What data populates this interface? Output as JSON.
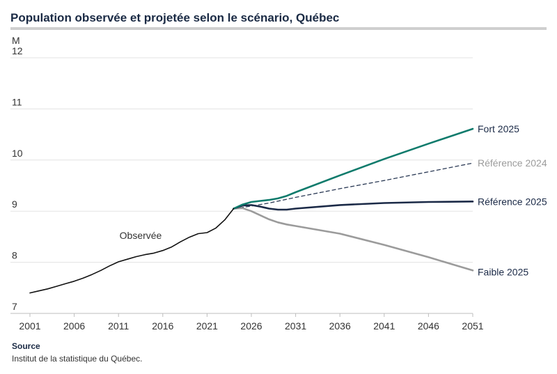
{
  "title": "Population observée et projetée selon le scénario, Québec",
  "source_label": "Source",
  "source_text": "Institut de la statistique du Québec.",
  "colors": {
    "observed": "#111111",
    "fort": "#0f7b6c",
    "ref2024": "#2b3a55",
    "ref2025": "#1b2a47",
    "faible": "#9b9b9b",
    "ref2024_label": "#9b9b9b",
    "grid": "#e3e3e3",
    "axis_text": "#333333"
  },
  "chart_data": {
    "type": "line",
    "title": "Population observée et projetée selon le scénario, Québec",
    "ylabel": "M",
    "xlim": [
      2001,
      2051
    ],
    "ylim": [
      7,
      12
    ],
    "xticks": [
      2001,
      2006,
      2011,
      2016,
      2021,
      2026,
      2031,
      2036,
      2041,
      2046,
      2051
    ],
    "yticks": [
      7,
      8,
      9,
      10,
      11,
      12
    ],
    "grid": true,
    "series": [
      {
        "name": "Observée",
        "key": "observed",
        "style": "solid",
        "x": [
          2001,
          2002,
          2003,
          2004,
          2005,
          2006,
          2007,
          2008,
          2009,
          2010,
          2011,
          2012,
          2013,
          2014,
          2015,
          2016,
          2017,
          2018,
          2019,
          2020,
          2021,
          2022,
          2023,
          2024
        ],
        "values": [
          7.4,
          7.44,
          7.48,
          7.53,
          7.58,
          7.63,
          7.69,
          7.76,
          7.84,
          7.93,
          8.01,
          8.06,
          8.11,
          8.15,
          8.18,
          8.23,
          8.3,
          8.4,
          8.49,
          8.56,
          8.58,
          8.67,
          8.83,
          9.05
        ]
      },
      {
        "name": "Fort 2025",
        "key": "fort",
        "style": "solid",
        "x": [
          2024,
          2025,
          2026,
          2027,
          2028,
          2029,
          2030,
          2031,
          2036,
          2041,
          2046,
          2051
        ],
        "values": [
          9.05,
          9.13,
          9.18,
          9.2,
          9.22,
          9.25,
          9.3,
          9.37,
          9.7,
          10.02,
          10.32,
          10.61
        ]
      },
      {
        "name": "Référence 2024",
        "key": "ref2024",
        "style": "dashed",
        "x": [
          2024,
          2026,
          2028,
          2031,
          2036,
          2041,
          2046,
          2051
        ],
        "values": [
          9.05,
          9.1,
          9.16,
          9.27,
          9.44,
          9.6,
          9.77,
          9.94
        ]
      },
      {
        "name": "Référence 2025",
        "key": "ref2025",
        "style": "solid",
        "x": [
          2024,
          2025,
          2026,
          2027,
          2028,
          2029,
          2030,
          2031,
          2036,
          2041,
          2046,
          2051
        ],
        "values": [
          9.05,
          9.11,
          9.12,
          9.09,
          9.05,
          9.03,
          9.03,
          9.05,
          9.12,
          9.16,
          9.18,
          9.19
        ]
      },
      {
        "name": "Faible 2025",
        "key": "faible",
        "style": "solid",
        "x": [
          2024,
          2025,
          2026,
          2027,
          2028,
          2029,
          2030,
          2031,
          2036,
          2041,
          2046,
          2051
        ],
        "values": [
          9.05,
          9.06,
          9.0,
          8.92,
          8.84,
          8.78,
          8.74,
          8.71,
          8.56,
          8.34,
          8.1,
          7.84
        ]
      }
    ],
    "annotations": [
      {
        "text": "Observée",
        "x": 2013.5,
        "y": 8.46
      }
    ]
  }
}
